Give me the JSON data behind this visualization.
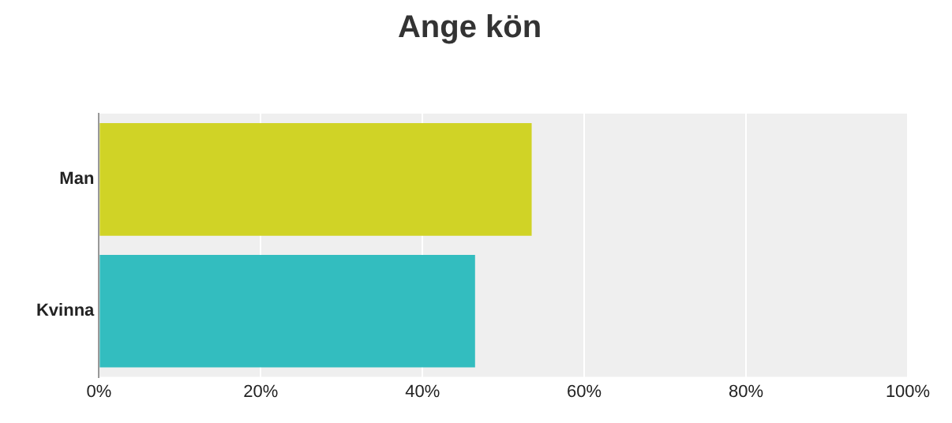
{
  "chart_data": {
    "type": "bar",
    "orientation": "horizontal",
    "title": "Ange kön",
    "categories": [
      "Man",
      "Kvinna"
    ],
    "values": [
      53.5,
      46.5
    ],
    "colors": [
      "#d0d326",
      "#33bdbf"
    ],
    "xlim": [
      0,
      100
    ],
    "xticks": [
      {
        "value": 0,
        "label": "0%"
      },
      {
        "value": 20,
        "label": "20%"
      },
      {
        "value": 40,
        "label": "40%"
      },
      {
        "value": 60,
        "label": "60%"
      },
      {
        "value": 80,
        "label": "80%"
      },
      {
        "value": 100,
        "label": "100%"
      }
    ],
    "grid": "x",
    "legend": false
  }
}
